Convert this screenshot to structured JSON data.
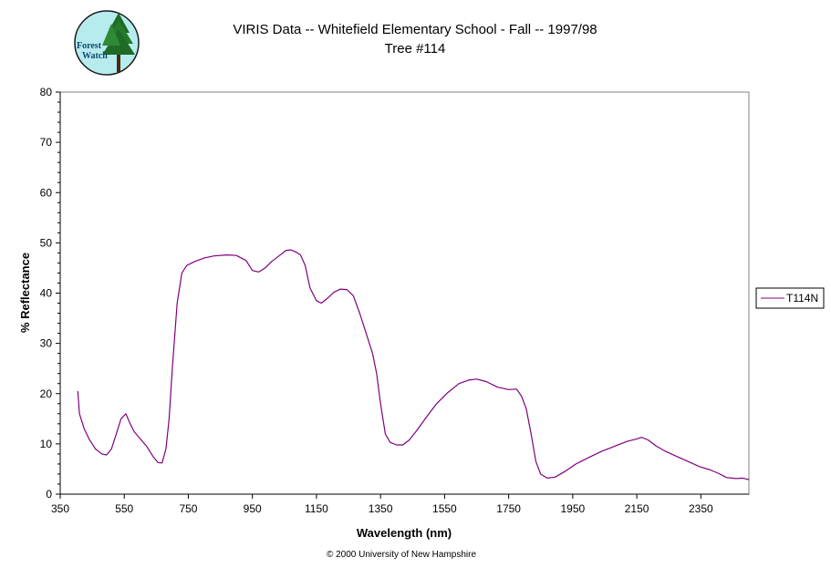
{
  "chart_data": {
    "type": "line",
    "title": "VIRIS Data -- Whitefield Elementary School - Fall -- 1997/98",
    "subtitle": "Tree #114",
    "xlabel": "Wavelength (nm)",
    "ylabel": "% Reflectance",
    "xlim": [
      350,
      2500
    ],
    "ylim": [
      0,
      80
    ],
    "x_ticks": [
      350,
      550,
      750,
      950,
      1150,
      1350,
      1550,
      1750,
      1950,
      2150,
      2350
    ],
    "y_ticks": [
      0,
      10,
      20,
      30,
      40,
      50,
      60,
      70,
      80
    ],
    "grid": false,
    "legend_position": "right",
    "series": [
      {
        "name": "T114N",
        "color": "#800080",
        "points": [
          [
            405,
            20.5
          ],
          [
            410,
            16
          ],
          [
            425,
            13
          ],
          [
            440,
            11
          ],
          [
            460,
            9
          ],
          [
            480,
            8
          ],
          [
            495,
            7.8
          ],
          [
            510,
            9
          ],
          [
            525,
            12
          ],
          [
            540,
            15
          ],
          [
            555,
            16
          ],
          [
            565,
            14.5
          ],
          [
            580,
            12.5
          ],
          [
            600,
            11
          ],
          [
            620,
            9.5
          ],
          [
            640,
            7.5
          ],
          [
            655,
            6.3
          ],
          [
            668,
            6.2
          ],
          [
            680,
            9
          ],
          [
            690,
            15
          ],
          [
            700,
            25
          ],
          [
            715,
            38
          ],
          [
            730,
            44
          ],
          [
            745,
            45.5
          ],
          [
            770,
            46.3
          ],
          [
            800,
            47
          ],
          [
            830,
            47.4
          ],
          [
            870,
            47.6
          ],
          [
            900,
            47.5
          ],
          [
            930,
            46.5
          ],
          [
            950,
            44.5
          ],
          [
            970,
            44.2
          ],
          [
            990,
            45
          ],
          [
            1010,
            46.3
          ],
          [
            1035,
            47.5
          ],
          [
            1055,
            48.5
          ],
          [
            1070,
            48.6
          ],
          [
            1085,
            48.2
          ],
          [
            1100,
            47.6
          ],
          [
            1115,
            45.5
          ],
          [
            1130,
            41
          ],
          [
            1150,
            38.5
          ],
          [
            1165,
            38
          ],
          [
            1185,
            39
          ],
          [
            1205,
            40.2
          ],
          [
            1225,
            40.8
          ],
          [
            1245,
            40.7
          ],
          [
            1265,
            39.5
          ],
          [
            1285,
            36
          ],
          [
            1305,
            32
          ],
          [
            1325,
            28
          ],
          [
            1338,
            24
          ],
          [
            1350,
            18
          ],
          [
            1365,
            12
          ],
          [
            1380,
            10.3
          ],
          [
            1400,
            9.8
          ],
          [
            1420,
            9.8
          ],
          [
            1440,
            10.8
          ],
          [
            1465,
            12.8
          ],
          [
            1495,
            15.5
          ],
          [
            1525,
            18
          ],
          [
            1560,
            20.2
          ],
          [
            1595,
            22
          ],
          [
            1625,
            22.7
          ],
          [
            1650,
            22.9
          ],
          [
            1680,
            22.4
          ],
          [
            1715,
            21.3
          ],
          [
            1750,
            20.8
          ],
          [
            1775,
            20.9
          ],
          [
            1790,
            19.5
          ],
          [
            1805,
            17
          ],
          [
            1820,
            12
          ],
          [
            1835,
            6.5
          ],
          [
            1850,
            4
          ],
          [
            1870,
            3.2
          ],
          [
            1895,
            3.4
          ],
          [
            1925,
            4.5
          ],
          [
            1960,
            6
          ],
          [
            2000,
            7.3
          ],
          [
            2040,
            8.5
          ],
          [
            2080,
            9.5
          ],
          [
            2120,
            10.5
          ],
          [
            2150,
            11
          ],
          [
            2165,
            11.3
          ],
          [
            2185,
            10.8
          ],
          [
            2210,
            9.6
          ],
          [
            2240,
            8.5
          ],
          [
            2275,
            7.5
          ],
          [
            2310,
            6.5
          ],
          [
            2345,
            5.5
          ],
          [
            2380,
            4.8
          ],
          [
            2410,
            4
          ],
          [
            2430,
            3.3
          ],
          [
            2460,
            3.1
          ],
          [
            2480,
            3.2
          ],
          [
            2500,
            2.9
          ]
        ]
      }
    ]
  },
  "logo": {
    "line1": "Forest",
    "line2": "Watch"
  },
  "footer": "© 2000 University of New Hampshire"
}
